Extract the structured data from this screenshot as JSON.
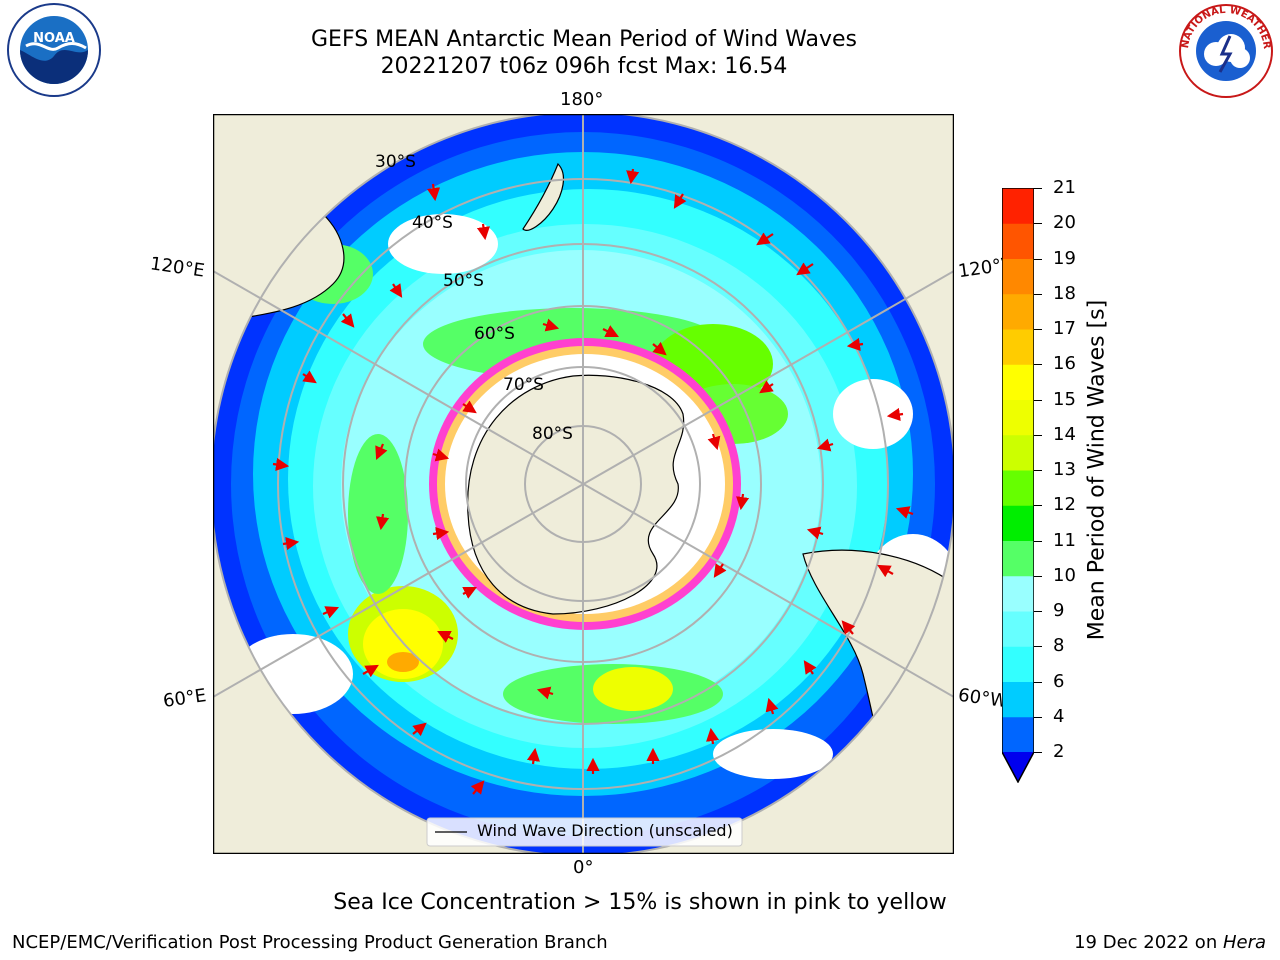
{
  "header": {
    "title_line1": "GEFS MEAN Antarctic Mean Period of Wind Waves",
    "title_line2": "20221207 t06z 096h fcst   Max: 16.54"
  },
  "logos": {
    "left": {
      "name": "noaa-logo",
      "text": "NOAA"
    },
    "right": {
      "name": "nws-logo",
      "text": "NATIONAL WEATHER SERVICE"
    }
  },
  "map": {
    "projection": "south-polar-stereographic",
    "longitude_labels": {
      "top": "180°",
      "bottom": "0°",
      "upper_left": "120°E",
      "lower_left": "60°E",
      "upper_right": "120°W",
      "lower_right": "60°W"
    },
    "latitude_labels": [
      "30°S",
      "40°S",
      "50°S",
      "60°S",
      "70°S",
      "80°S"
    ],
    "legend": "Wind Wave Direction (unscaled)",
    "colors": {
      "land": "#efedda",
      "grid": "#b0b0b0",
      "arrow": "#e80000",
      "ice": "#ff40d0"
    }
  },
  "colorbar": {
    "label": "Mean Period of Wind Waves [s]",
    "ticks": [
      "2",
      "4",
      "6",
      "8",
      "9",
      "10",
      "11",
      "12",
      "13",
      "14",
      "15",
      "16",
      "17",
      "18",
      "19",
      "20",
      "21"
    ],
    "colors": [
      "#0066ff",
      "#00ccff",
      "#33ffff",
      "#66ffff",
      "#99ffff",
      "#55ff66",
      "#00ee00",
      "#66ff00",
      "#ccff00",
      "#eeff00",
      "#ffff00",
      "#ffcc00",
      "#ffaa00",
      "#ff8800",
      "#ff5500",
      "#ff2200"
    ],
    "extend_color": "#0000ee"
  },
  "notes": {
    "sea_ice": "Sea Ice Concentration > 15% is shown in pink to yellow"
  },
  "footer": {
    "left": "NCEP/EMC/Verification Post Processing Product Generation Branch",
    "right_date": "19 Dec 2022 on ",
    "right_host": "Hera"
  }
}
